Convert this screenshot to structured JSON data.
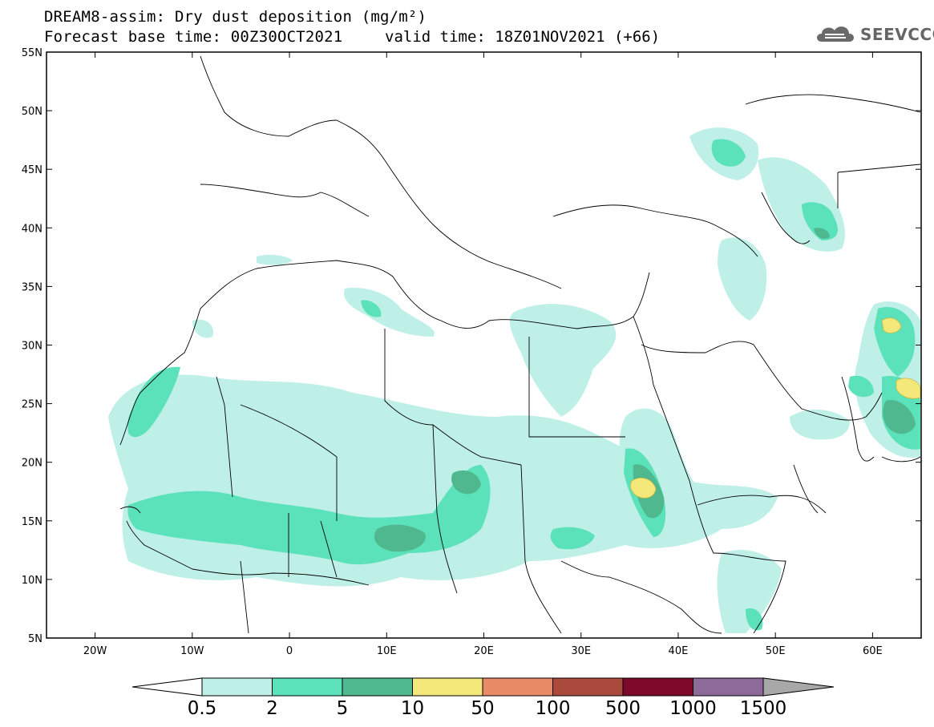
{
  "header": {
    "title": "DREAM8-assim: Dry dust deposition (mg/m²)",
    "base_time_label": "Forecast base time: 00Z30OCT2021",
    "valid_time_label": "valid time: 18Z01NOV2021 (+66)"
  },
  "logo": {
    "text": "SEEVCCC",
    "icon": "cloud-icon"
  },
  "map": {
    "lat_labels": [
      "55N",
      "50N",
      "45N",
      "40N",
      "35N",
      "30N",
      "25N",
      "20N",
      "15N",
      "10N",
      "5N"
    ],
    "lon_labels": [
      "20W",
      "10W",
      "0",
      "10E",
      "20E",
      "30E",
      "40E",
      "50E",
      "60E"
    ],
    "lat_values": [
      55,
      50,
      45,
      40,
      35,
      30,
      25,
      20,
      15,
      10,
      5
    ],
    "lon_values": [
      -20,
      -10,
      0,
      10,
      20,
      30,
      40,
      50,
      60
    ],
    "extent": {
      "lon_min": -25,
      "lon_max": 65,
      "lat_min": 5,
      "lat_max": 55
    }
  },
  "colorbar": {
    "labels": [
      "0.5",
      "2",
      "5",
      "10",
      "50",
      "100",
      "500",
      "1000",
      "1500"
    ],
    "colors": [
      "#bff0e8",
      "#5ce2ba",
      "#4fb88e",
      "#f5e87a",
      "#e98b66",
      "#aa4a3c",
      "#7d0a2a",
      "#8c6a9a"
    ],
    "under_color": "#ffffff",
    "over_color": "#a8a8a8"
  },
  "colors": {
    "land_border": "#000000",
    "background": "#ffffff"
  }
}
